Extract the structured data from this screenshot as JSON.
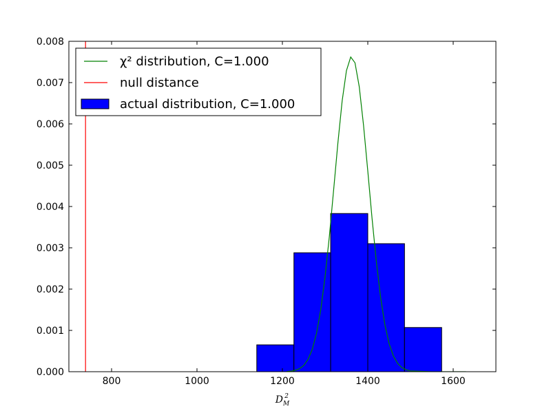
{
  "chart_data": {
    "type": "histogram",
    "xlabel": "D_M^2",
    "xlim": [
      700,
      1700
    ],
    "ylim": [
      0,
      0.008
    ],
    "xticks": [
      800,
      1000,
      1200,
      1400,
      1600
    ],
    "yticks": [
      {
        "value": 0,
        "label": "0.000"
      },
      0.001,
      0.002,
      0.003,
      0.004,
      0.005,
      0.006,
      0.007,
      0.008
    ],
    "bins": [
      1140,
      1227,
      1313,
      1400,
      1486,
      1573
    ],
    "counts": [
      0.00065,
      0.00288,
      0.00383,
      0.0031,
      0.00107
    ],
    "name": "actual distribution, C=1.000",
    "color": "#0000ff",
    "legend": "upper left",
    "series": [
      {
        "name": "χ² distribution, C=1.000",
        "type": "line",
        "color": "#008000",
        "x": [
          1210,
          1220,
          1230,
          1240,
          1250,
          1260,
          1270,
          1280,
          1290,
          1300,
          1310,
          1320,
          1330,
          1340,
          1350,
          1360,
          1370,
          1380,
          1390,
          1400,
          1410,
          1420,
          1430,
          1440,
          1450,
          1460,
          1470,
          1480,
          1490,
          1500,
          1550,
          1600,
          1630
        ],
        "values": [
          5.6e-06,
          1.4e-05,
          3.3e-05,
          7.3e-05,
          0.000151,
          0.000296,
          0.000542,
          0.000933,
          0.00151,
          0.0023,
          0.00328,
          0.0044,
          0.00554,
          0.00656,
          0.00729,
          0.00762,
          0.00748,
          0.0069,
          0.00597,
          0.00486,
          0.00371,
          0.00267,
          0.0018,
          0.00114,
          0.000678,
          0.000379,
          0.000199,
          9.84e-05,
          4.56e-05,
          1.98e-05,
          0,
          0,
          0
        ]
      },
      {
        "name": "null distance",
        "type": "vline",
        "color": "#ff0000",
        "x": 739
      }
    ]
  }
}
